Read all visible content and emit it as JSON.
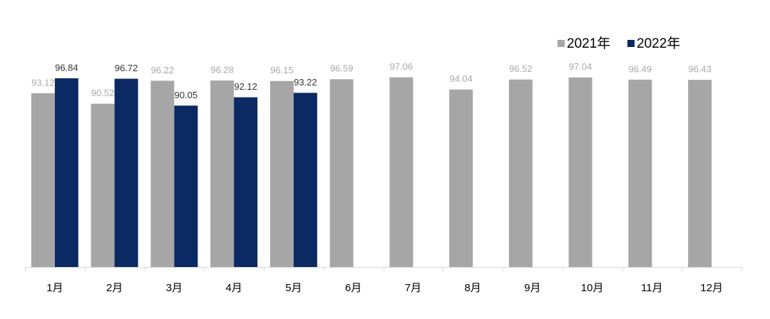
{
  "chart_data": {
    "type": "bar",
    "categories": [
      "1月",
      "2月",
      "3月",
      "4月",
      "5月",
      "6月",
      "7月",
      "8月",
      "9月",
      "10月",
      "11月",
      "12月"
    ],
    "series": [
      {
        "name": "2021年",
        "color": "#a6a6a6",
        "values": [
          93.12,
          90.52,
          96.22,
          96.28,
          96.15,
          96.59,
          97.06,
          94.04,
          96.52,
          97.04,
          96.49,
          96.43
        ]
      },
      {
        "name": "2022年",
        "color": "#0b2a63",
        "values": [
          96.84,
          96.72,
          90.05,
          92.12,
          93.22,
          null,
          null,
          null,
          null,
          null,
          null,
          null
        ]
      }
    ],
    "ylim": [
      50,
      100
    ],
    "grid": false,
    "legend": "top-right"
  }
}
